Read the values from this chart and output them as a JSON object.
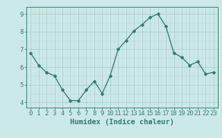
{
  "x": [
    0,
    1,
    2,
    3,
    4,
    5,
    6,
    7,
    8,
    9,
    10,
    11,
    12,
    13,
    14,
    15,
    16,
    17,
    18,
    19,
    20,
    21,
    22,
    23
  ],
  "y": [
    6.8,
    6.1,
    5.7,
    5.5,
    4.7,
    4.1,
    4.1,
    4.7,
    5.2,
    4.5,
    5.5,
    7.0,
    7.5,
    8.05,
    8.4,
    8.8,
    9.0,
    8.3,
    6.8,
    6.55,
    6.1,
    6.3,
    5.6,
    5.7
  ],
  "line_color": "#2e7d6e",
  "bg_color": "#cde8e8",
  "grid_color_major": "#aacccc",
  "grid_color_minor": "#bdd8d8",
  "xlabel": "Humidex (Indice chaleur)",
  "xlim": [
    -0.5,
    23.5
  ],
  "ylim": [
    3.7,
    9.4
  ],
  "yticks": [
    4,
    5,
    6,
    7,
    8,
    9
  ],
  "xticks": [
    0,
    1,
    2,
    3,
    4,
    5,
    6,
    7,
    8,
    9,
    10,
    11,
    12,
    13,
    14,
    15,
    16,
    17,
    18,
    19,
    20,
    21,
    22,
    23
  ],
  "label_fontsize": 7.5,
  "tick_fontsize": 6.5
}
